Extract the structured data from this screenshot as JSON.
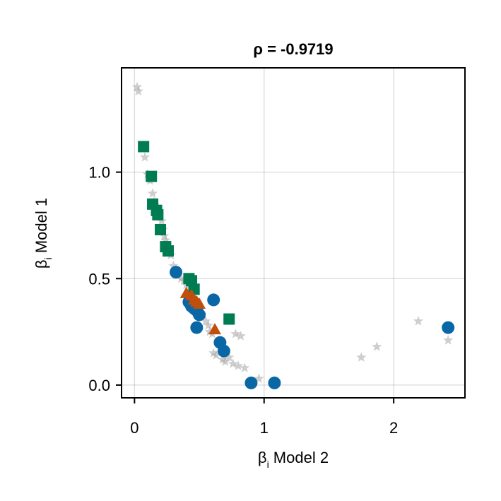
{
  "chart_data": {
    "type": "scatter",
    "title": "ρ = -0.9719",
    "xlabel": {
      "base": "β",
      "sub": "i",
      "rest": " Model 2"
    },
    "ylabel": {
      "base": "β",
      "sub": "i",
      "rest": " Model 1"
    },
    "xlim": [
      -0.1,
      2.55
    ],
    "ylim": [
      -0.06,
      1.49
    ],
    "xticks": [
      {
        "value": 0,
        "label": "0"
      },
      {
        "value": 1,
        "label": "1"
      },
      {
        "value": 2,
        "label": "2"
      }
    ],
    "yticks": [
      {
        "value": 0.0,
        "label": "0.0"
      },
      {
        "value": 0.5,
        "label": "0.5"
      },
      {
        "value": 1.0,
        "label": "1.0"
      }
    ],
    "grid": true,
    "legend": "none",
    "series": [
      {
        "marker": "star",
        "color": "#9e9e9e",
        "points": [
          [
            0.02,
            1.4
          ],
          [
            0.03,
            1.38
          ],
          [
            0.08,
            1.07
          ],
          [
            0.1,
            0.99
          ],
          [
            0.12,
            0.96
          ],
          [
            0.14,
            0.9
          ],
          [
            0.15,
            0.86
          ],
          [
            0.16,
            0.83
          ],
          [
            0.18,
            0.84
          ],
          [
            0.19,
            0.8
          ],
          [
            0.21,
            0.77
          ],
          [
            0.22,
            0.73
          ],
          [
            0.23,
            0.7
          ],
          [
            0.24,
            0.68
          ],
          [
            0.25,
            0.66
          ],
          [
            0.27,
            0.63
          ],
          [
            0.28,
            0.61
          ],
          [
            0.3,
            0.56
          ],
          [
            0.33,
            0.52
          ],
          [
            0.36,
            0.5
          ],
          [
            0.38,
            0.49
          ],
          [
            0.4,
            0.47
          ],
          [
            0.42,
            0.44
          ],
          [
            0.45,
            0.41
          ],
          [
            0.48,
            0.38
          ],
          [
            0.5,
            0.35
          ],
          [
            0.52,
            0.33
          ],
          [
            0.55,
            0.3
          ],
          [
            0.57,
            0.28
          ],
          [
            0.58,
            0.25
          ],
          [
            0.6,
            0.24
          ],
          [
            0.61,
            0.15
          ],
          [
            0.63,
            0.14
          ],
          [
            0.68,
            0.12
          ],
          [
            0.7,
            0.11
          ],
          [
            0.73,
            0.13
          ],
          [
            0.76,
            0.1
          ],
          [
            0.78,
            0.24
          ],
          [
            0.8,
            0.09
          ],
          [
            0.82,
            0.23
          ],
          [
            0.85,
            0.08
          ],
          [
            0.96,
            0.03
          ],
          [
            1.75,
            0.13
          ],
          [
            1.87,
            0.18
          ],
          [
            2.19,
            0.3
          ],
          [
            2.42,
            0.21
          ]
        ]
      },
      {
        "marker": "circle",
        "color": "#0a67a6",
        "points": [
          [
            0.32,
            0.53
          ],
          [
            0.42,
            0.39
          ],
          [
            0.44,
            0.37
          ],
          [
            0.46,
            0.36
          ],
          [
            0.48,
            0.35
          ],
          [
            0.5,
            0.33
          ],
          [
            0.48,
            0.27
          ],
          [
            0.61,
            0.4
          ],
          [
            0.66,
            0.2
          ],
          [
            0.69,
            0.16
          ],
          [
            0.9,
            0.01
          ],
          [
            1.08,
            0.01
          ],
          [
            2.42,
            0.27
          ]
        ]
      },
      {
        "marker": "square",
        "color": "#007c53",
        "points": [
          [
            0.07,
            1.12
          ],
          [
            0.13,
            0.98
          ],
          [
            0.14,
            0.85
          ],
          [
            0.17,
            0.82
          ],
          [
            0.18,
            0.8
          ],
          [
            0.2,
            0.73
          ],
          [
            0.24,
            0.65
          ],
          [
            0.26,
            0.63
          ],
          [
            0.42,
            0.5
          ],
          [
            0.44,
            0.49
          ],
          [
            0.46,
            0.45
          ],
          [
            0.73,
            0.31
          ]
        ]
      },
      {
        "marker": "triangle",
        "color": "#c14f0c",
        "points": [
          [
            0.4,
            0.43
          ],
          [
            0.44,
            0.42
          ],
          [
            0.46,
            0.4
          ],
          [
            0.48,
            0.39
          ],
          [
            0.5,
            0.38
          ],
          [
            0.62,
            0.26
          ]
        ]
      }
    ]
  }
}
